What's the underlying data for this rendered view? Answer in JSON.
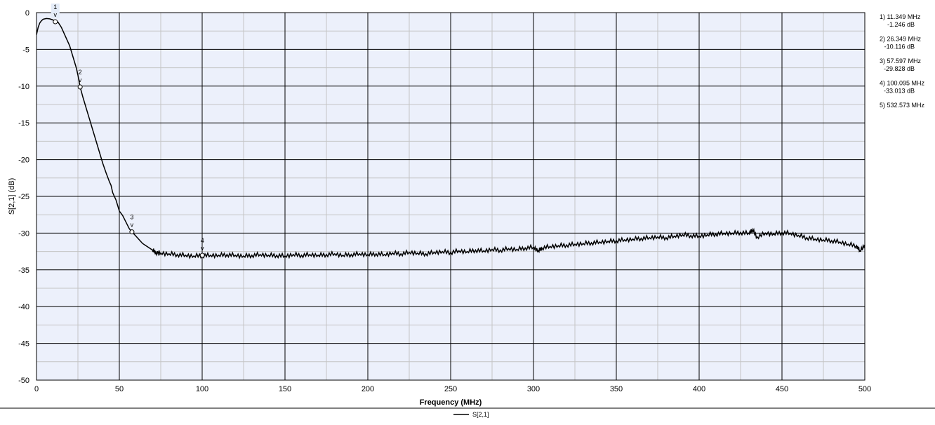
{
  "chart_data": {
    "type": "line",
    "xlabel": "Frequency (MHz)",
    "ylabel": "S[2,1] (dB)",
    "xlim": [
      0,
      500
    ],
    "ylim": [
      -50,
      0
    ],
    "x_ticks": [
      "0",
      "50",
      "100",
      "150",
      "200",
      "250",
      "300",
      "350",
      "400",
      "450",
      "500"
    ],
    "y_ticks": [
      "0",
      "-5",
      "-10",
      "-15",
      "-20",
      "-25",
      "-30",
      "-35",
      "-40",
      "-45",
      "-50"
    ],
    "grid": true,
    "legend": "bottom-center",
    "colors": {
      "plot_background": "#ecf0fb",
      "major_grid": "#000000",
      "minor_grid": "#c4c4c4",
      "trace": "#000000"
    },
    "series": [
      {
        "name": "S[2,1]",
        "x": [
          0,
          1,
          2,
          3,
          4,
          5,
          6,
          8,
          10,
          11.349,
          13,
          15,
          17,
          20,
          22,
          24,
          25,
          26.349,
          28,
          30,
          32,
          34,
          36,
          38,
          40,
          42,
          44,
          45,
          46,
          48,
          50,
          52,
          54,
          56,
          57.597,
          60,
          62,
          64,
          66,
          68,
          70,
          72,
          75,
          80,
          85,
          90,
          95,
          100.095,
          105,
          110,
          115,
          120,
          125,
          130,
          135,
          140,
          145,
          150,
          155,
          160,
          165,
          170,
          175,
          180,
          185,
          190,
          195,
          200,
          205,
          210,
          215,
          220,
          225,
          230,
          235,
          240,
          245,
          250,
          255,
          260,
          265,
          270,
          275,
          280,
          285,
          290,
          295,
          300,
          303,
          305,
          310,
          315,
          320,
          325,
          330,
          335,
          340,
          345,
          350,
          355,
          360,
          365,
          370,
          375,
          380,
          385,
          390,
          395,
          400,
          405,
          410,
          415,
          420,
          425,
          430,
          432,
          435,
          440,
          445,
          450,
          455,
          460,
          465,
          470,
          475,
          480,
          485,
          490,
          495,
          497,
          500
        ],
        "values": [
          -3.0,
          -2.0,
          -1.4,
          -1.1,
          -0.9,
          -0.85,
          -0.8,
          -0.85,
          -1.0,
          -1.246,
          -1.3,
          -2.0,
          -3.0,
          -4.5,
          -6.0,
          -7.5,
          -8.5,
          -10.116,
          -11.5,
          -13.0,
          -14.5,
          -16.0,
          -17.5,
          -19.0,
          -20.5,
          -21.8,
          -23.0,
          -23.5,
          -24.5,
          -25.5,
          -27.0,
          -27.6,
          -28.5,
          -29.4,
          -29.828,
          -30.4,
          -30.9,
          -31.4,
          -31.7,
          -32.0,
          -32.3,
          -32.6,
          -32.7,
          -32.8,
          -32.9,
          -33.0,
          -33.1,
          -33.013,
          -33.0,
          -33.0,
          -32.9,
          -33.0,
          -33.1,
          -33.0,
          -32.9,
          -33.0,
          -33.0,
          -33.1,
          -32.9,
          -33.0,
          -32.9,
          -33.0,
          -32.9,
          -32.8,
          -33.0,
          -32.9,
          -32.8,
          -32.9,
          -32.8,
          -32.9,
          -32.7,
          -32.8,
          -32.6,
          -32.7,
          -32.8,
          -32.6,
          -32.5,
          -32.6,
          -32.4,
          -32.5,
          -32.3,
          -32.4,
          -32.2,
          -32.3,
          -32.1,
          -32.2,
          -32.0,
          -31.9,
          -32.4,
          -32.0,
          -31.8,
          -31.7,
          -31.6,
          -31.5,
          -31.4,
          -31.3,
          -31.2,
          -31.1,
          -31.0,
          -30.9,
          -30.8,
          -30.7,
          -30.6,
          -30.5,
          -30.6,
          -30.4,
          -30.2,
          -30.3,
          -30.4,
          -30.2,
          -30.1,
          -30.0,
          -30.0,
          -29.9,
          -30.0,
          -29.5,
          -30.5,
          -30.0,
          -30.1,
          -29.9,
          -30.0,
          -30.3,
          -30.6,
          -30.8,
          -30.9,
          -31.0,
          -31.2,
          -31.5,
          -31.7,
          -32.4,
          -31.6
        ]
      }
    ],
    "markers": [
      {
        "label": "1",
        "x": 11.349,
        "y": -1.246
      },
      {
        "label": "2",
        "x": 26.349,
        "y": -10.116
      },
      {
        "label": "3",
        "x": 57.597,
        "y": -29.828
      },
      {
        "label": "4",
        "x": 100.095,
        "y": -33.013
      }
    ],
    "marker_arrow": "v",
    "marker_readout": [
      {
        "line1": "1) 11.349 MHz",
        "line2": "-1.246 dB"
      },
      {
        "line1": "2) 26.349 MHz",
        "line2": "-10.116 dB"
      },
      {
        "line1": "3) 57.597 MHz",
        "line2": "-29.828 dB"
      },
      {
        "line1": "4) 100.095 MHz",
        "line2": "-33.013 dB"
      },
      {
        "line1": "5) 532.573 MHz",
        "line2": ""
      }
    ]
  }
}
